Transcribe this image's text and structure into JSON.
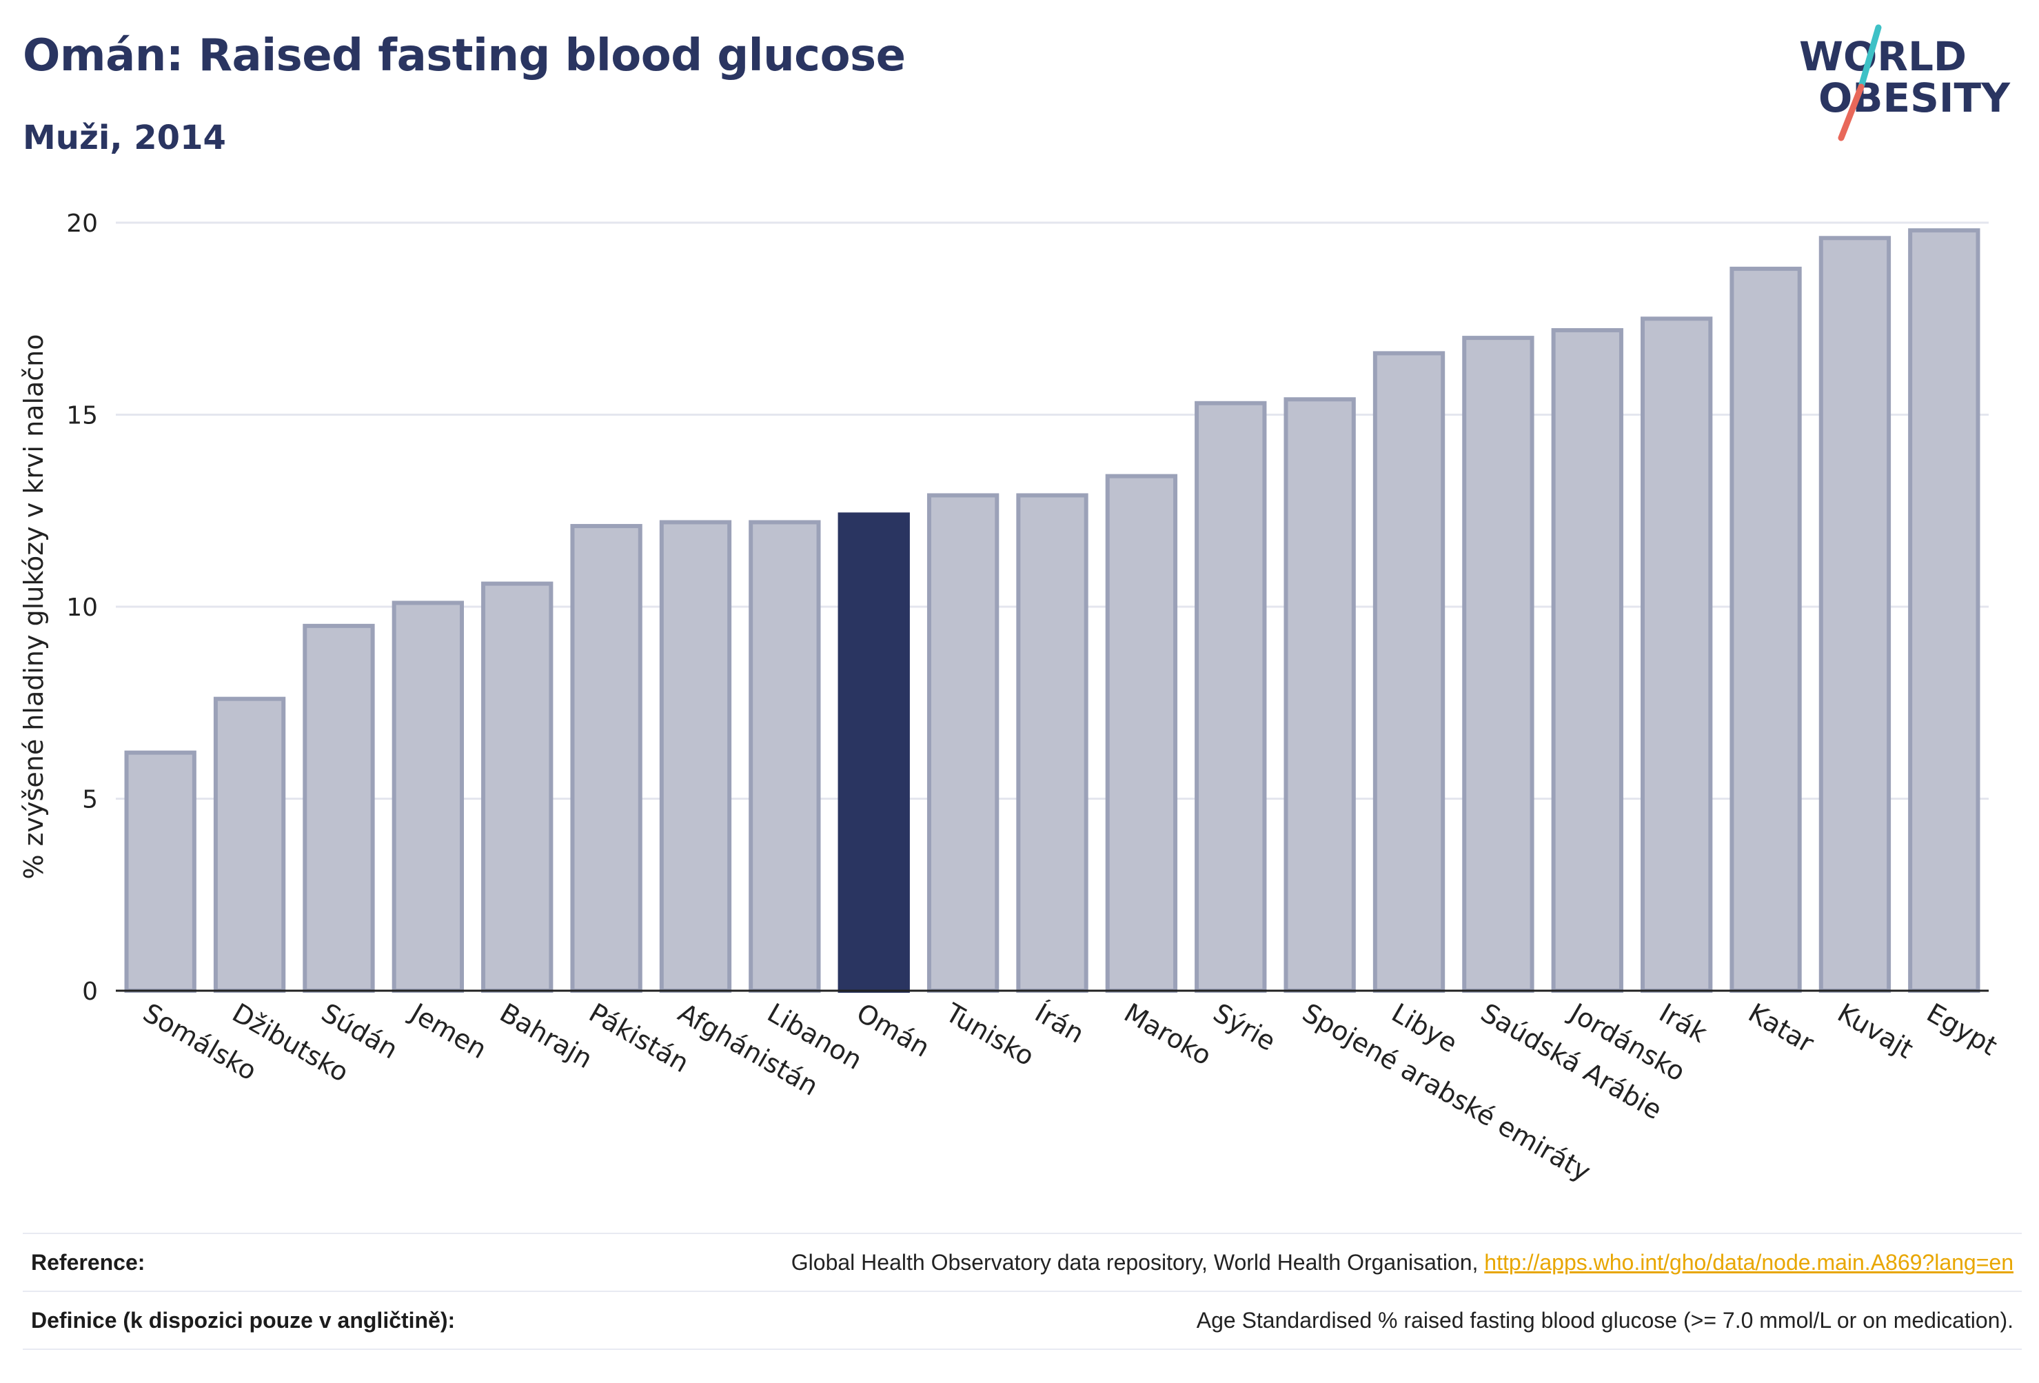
{
  "header": {
    "title": "Omán: Raised fasting blood glucose",
    "subtitle": "Muži, 2014"
  },
  "logo": {
    "line1": "WORLD",
    "line2": "OBESITY",
    "text_color": "#2a3561",
    "slash_color_top": "#3ec1c6",
    "slash_color_bottom": "#e8685a"
  },
  "colors": {
    "bar_default": "#bec1cf",
    "bar_default_border": "#9ba1b8",
    "bar_highlight": "#2a3561",
    "grid": "#e4e6ee",
    "axis": "#222222",
    "text": "#222222"
  },
  "chart_data": {
    "type": "bar",
    "title": "",
    "xlabel": "",
    "ylabel": "% zvýšené hladiny glukózy v krvi nalačno",
    "ylim": [
      0,
      20
    ],
    "yticks": [
      0,
      5,
      10,
      15,
      20
    ],
    "grid": true,
    "highlight": "Omán",
    "categories": [
      "Somálsko",
      "Džibutsko",
      "Súdán",
      "Jemen",
      "Bahrajn",
      "Pákistán",
      "Afghánistán",
      "Libanon",
      "Omán",
      "Tunisko",
      "Írán",
      "Maroko",
      "Sýrie",
      "Spojené arabské emiráty",
      "Libye",
      "Saúdská Arábie",
      "Jordánsko",
      "Irák",
      "Katar",
      "Kuvajt",
      "Egypt"
    ],
    "values": [
      6.2,
      7.6,
      9.5,
      10.1,
      10.6,
      12.1,
      12.2,
      12.2,
      12.4,
      12.9,
      12.9,
      13.4,
      15.3,
      15.4,
      16.6,
      17.0,
      17.2,
      17.5,
      18.8,
      19.6,
      19.8
    ]
  },
  "footer": {
    "reference_label": "Reference:",
    "reference_text": "Global Health Observatory data repository, World Health Organisation, ",
    "reference_link": "http://apps.who.int/gho/data/node.main.A869?lang=en",
    "definition_label": "Definice (k dispozici pouze v angličtině):",
    "definition_text": "Age Standardised % raised fasting blood glucose (>= 7.0 mmol/L or on medication)."
  }
}
